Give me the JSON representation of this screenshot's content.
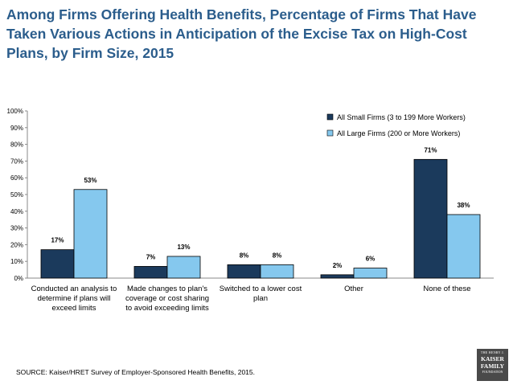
{
  "title": "Among Firms Offering Health Benefits, Percentage of Firms That Have Taken Various Actions in Anticipation of the Excise Tax on High-Cost Plans, by Firm Size, 2015",
  "source": "SOURCE: Kaiser/HRET Survey of Employer-Sponsored Health Benefits, 2015.",
  "logo": {
    "line1": "THE HENRY J.",
    "line2a": "KAISER",
    "line2b": "FAMILY",
    "line3": "FOUNDATION"
  },
  "colors": {
    "small": "#1b3a5c",
    "large": "#85c8ee",
    "axis": "#888888",
    "title": "#2b5d8c"
  },
  "chart_data": {
    "type": "bar",
    "ylim": [
      0,
      100
    ],
    "yticks": [
      "0%",
      "10%",
      "20%",
      "30%",
      "40%",
      "50%",
      "60%",
      "70%",
      "80%",
      "90%",
      "100%"
    ],
    "grid": false,
    "legend_position": "top-right",
    "categories": [
      [
        "Conducted an analysis to",
        "determine if plans will",
        "exceed limits"
      ],
      [
        "Made changes to plan's",
        "coverage or cost sharing",
        "to avoid exceeding limits"
      ],
      [
        "Switched to a lower cost",
        "plan"
      ],
      [
        "Other"
      ],
      [
        "None of these"
      ]
    ],
    "series": [
      {
        "name": "All Small Firms (3 to 199 More Workers)",
        "values": [
          17,
          7,
          8,
          2,
          71
        ],
        "labels": [
          "17%",
          "7%",
          "8%",
          "2%",
          "71%"
        ]
      },
      {
        "name": "All Large Firms (200 or More Workers)",
        "values": [
          53,
          13,
          8,
          6,
          38
        ],
        "labels": [
          "53%",
          "13%",
          "8%",
          "6%",
          "38%"
        ]
      }
    ]
  }
}
